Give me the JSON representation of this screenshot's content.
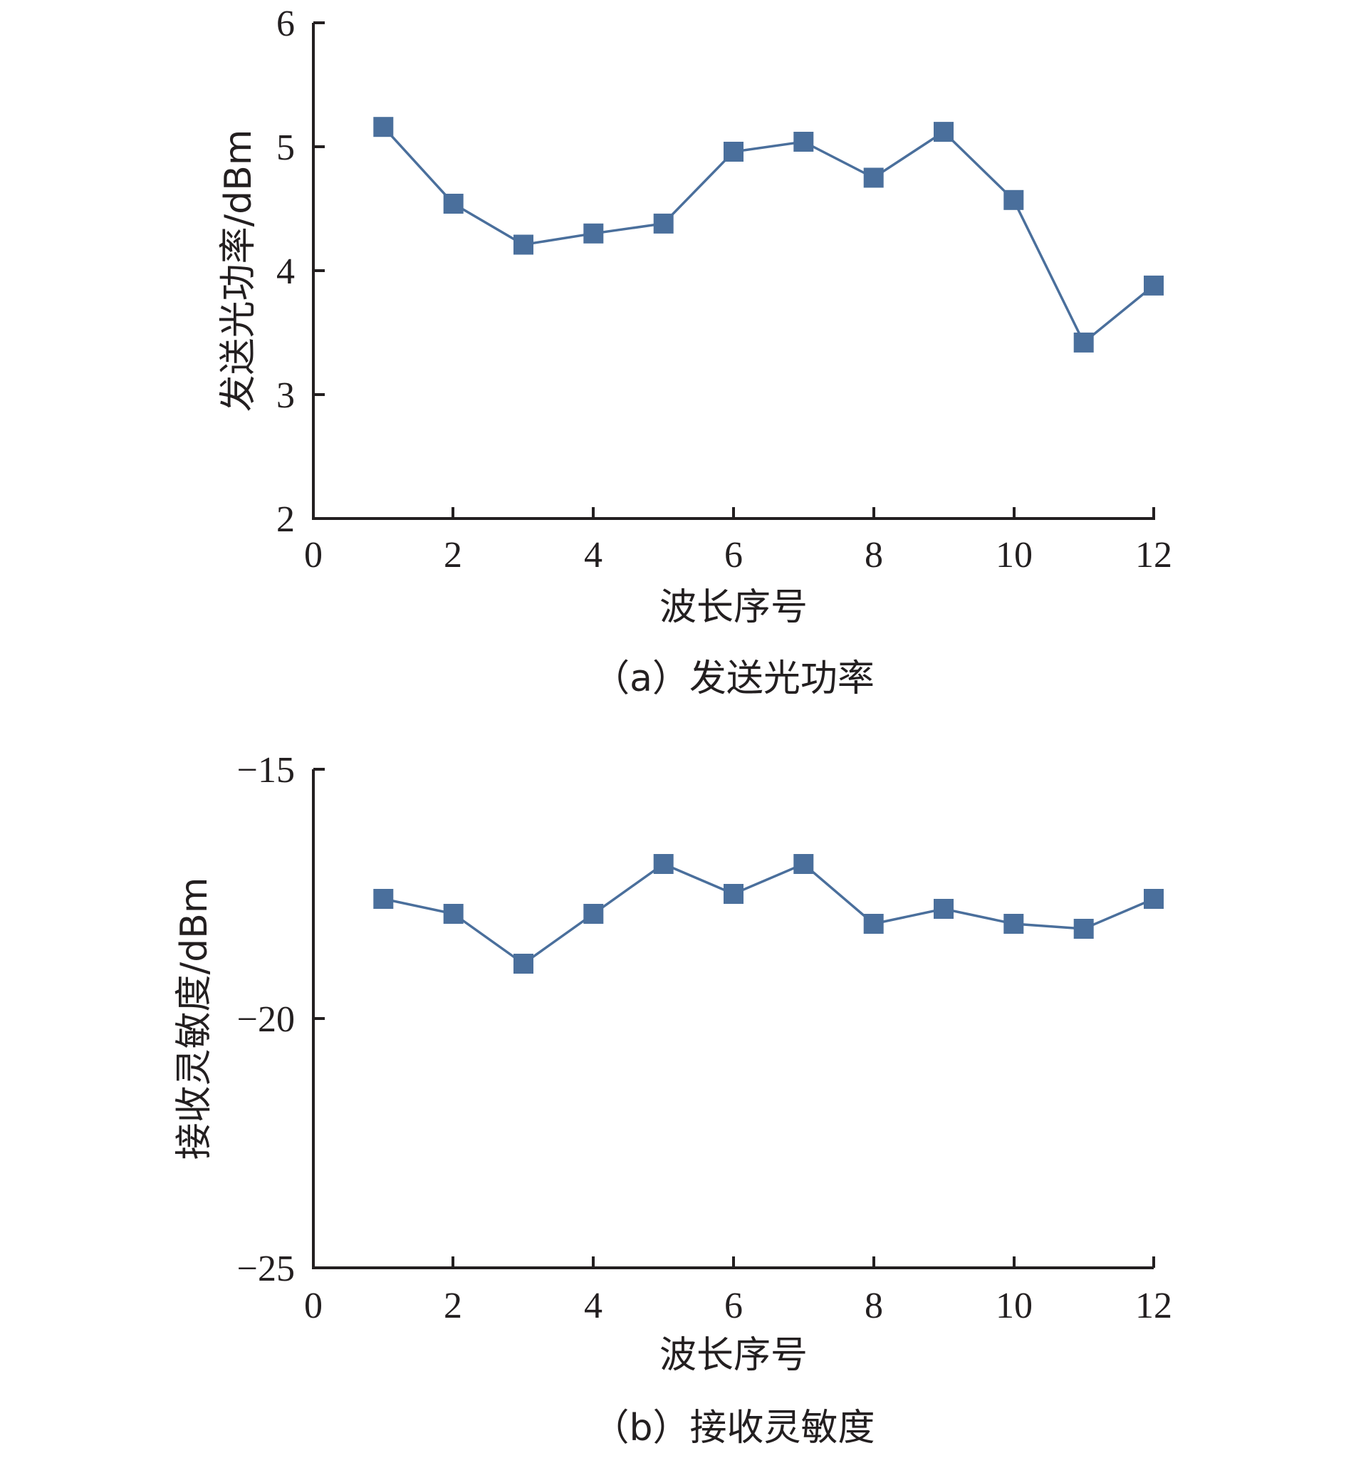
{
  "colors": {
    "series": "#4a6f9c",
    "axis": "#231f20"
  },
  "chart_data": [
    {
      "type": "line",
      "marker": "square",
      "x": [
        1,
        2,
        3,
        4,
        5,
        6,
        7,
        8,
        9,
        10,
        11,
        12
      ],
      "series": [
        {
          "values": [
            5.16,
            4.54,
            4.21,
            4.3,
            4.38,
            4.96,
            5.04,
            4.75,
            5.12,
            4.57,
            3.42,
            3.88
          ]
        }
      ],
      "xlim": [
        0,
        12
      ],
      "ylim": [
        2,
        6
      ],
      "xticks": [
        "0",
        "2",
        "4",
        "6",
        "8",
        "10",
        "12"
      ],
      "yticks": [
        "2",
        "3",
        "4",
        "5",
        "6"
      ],
      "xlabel": "波长序号",
      "ylabel": "发送光功率/dBm",
      "caption": "（a）发送光功率",
      "grid": false
    },
    {
      "type": "line",
      "marker": "square",
      "x": [
        1,
        2,
        3,
        4,
        5,
        6,
        7,
        8,
        9,
        10,
        11,
        12
      ],
      "series": [
        {
          "values": [
            -17.6,
            -17.9,
            -18.9,
            -17.9,
            -16.9,
            -17.5,
            -16.9,
            -18.1,
            -17.8,
            -18.1,
            -18.2,
            -17.6
          ]
        }
      ],
      "xlim": [
        0,
        12
      ],
      "ylim": [
        -25,
        -15
      ],
      "xticks": [
        "0",
        "2",
        "4",
        "6",
        "8",
        "10",
        "12"
      ],
      "yticks": [
        "−25",
        "−20",
        "−15"
      ],
      "xlabel": "波长序号",
      "ylabel": "接收灵敏度/dBm",
      "caption": "（b）接收灵敏度",
      "grid": false
    }
  ]
}
